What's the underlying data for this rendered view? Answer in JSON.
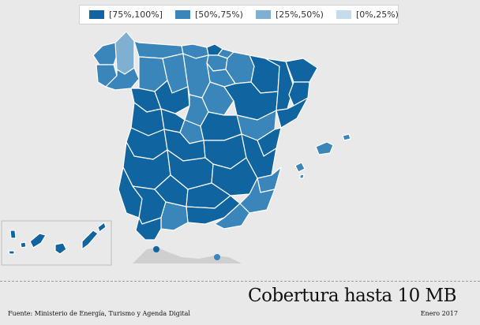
{
  "legend": {
    "items": [
      {
        "label": "[75%,100%]",
        "color": "#1065a0"
      },
      {
        "label": "[50%,75%)",
        "color": "#3a86ba"
      },
      {
        "label": "[25%,50%)",
        "color": "#7fb0d2"
      },
      {
        "label": "[0%,25%)",
        "color": "#c7dcea"
      }
    ]
  },
  "title": "Cobertura hasta 10 MB",
  "date": "Enero 2017",
  "source": "Fuente: Ministerio de Energía, Turismo y Agenda Digital"
}
